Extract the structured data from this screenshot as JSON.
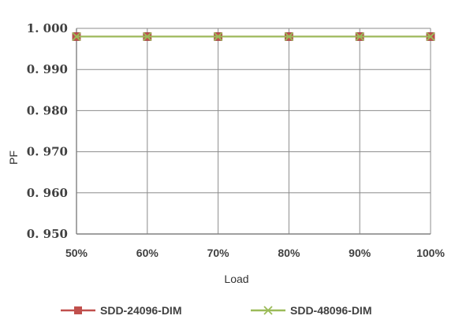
{
  "chart_data": {
    "type": "line",
    "title": "",
    "xlabel": "Load",
    "ylabel": "PF",
    "categories": [
      "50%",
      "60%",
      "70%",
      "80%",
      "90%",
      "100%"
    ],
    "yticks": [
      "1. 000",
      "0. 990",
      "0. 980",
      "0. 970",
      "0. 960",
      "0. 950"
    ],
    "ylim": [
      0.95,
      1.0
    ],
    "grid": true,
    "legend_position": "bottom",
    "series": [
      {
        "name": "SDD-24096-DIM",
        "values": [
          0.998,
          0.998,
          0.998,
          0.998,
          0.998,
          0.998
        ],
        "color": "#c0504d",
        "marker": "square"
      },
      {
        "name": "SDD-48096-DIM",
        "values": [
          0.998,
          0.998,
          0.998,
          0.998,
          0.998,
          0.998
        ],
        "color": "#9bbb59",
        "marker": "x"
      }
    ]
  }
}
